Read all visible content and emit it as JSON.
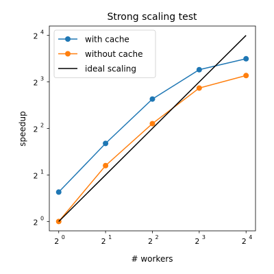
{
  "chart_data": {
    "type": "line",
    "title": "Strong scaling test",
    "xlabel": "# workers",
    "ylabel": "speedup",
    "xscale": "log2",
    "yscale": "log2",
    "xlim": [
      0.87,
      18.4
    ],
    "ylim": [
      0.87,
      18.4
    ],
    "xticks": [
      {
        "value": 1,
        "exp": "0"
      },
      {
        "value": 2,
        "exp": "1"
      },
      {
        "value": 4,
        "exp": "2"
      },
      {
        "value": 8,
        "exp": "3"
      },
      {
        "value": 16,
        "exp": "4"
      }
    ],
    "yticks": [
      {
        "value": 1,
        "exp": "0"
      },
      {
        "value": 2,
        "exp": "1"
      },
      {
        "value": 4,
        "exp": "2"
      },
      {
        "value": 8,
        "exp": "3"
      },
      {
        "value": 16,
        "exp": "4"
      }
    ],
    "tick_base": "2",
    "grid": false,
    "legend_position": "top-left",
    "x": [
      1,
      2,
      4,
      8,
      16
    ],
    "series": [
      {
        "name": "with cache",
        "color": "#1f77b4",
        "marker": "circle",
        "values": [
          1.55,
          3.2,
          6.2,
          9.6,
          11.3
        ]
      },
      {
        "name": "without cache",
        "color": "#ff7f0e",
        "marker": "circle",
        "values": [
          1.0,
          2.3,
          4.3,
          7.3,
          8.8
        ]
      },
      {
        "name": "ideal scaling",
        "color": "#000000",
        "marker": "none",
        "values": [
          1,
          2,
          4,
          8,
          16
        ]
      }
    ]
  }
}
